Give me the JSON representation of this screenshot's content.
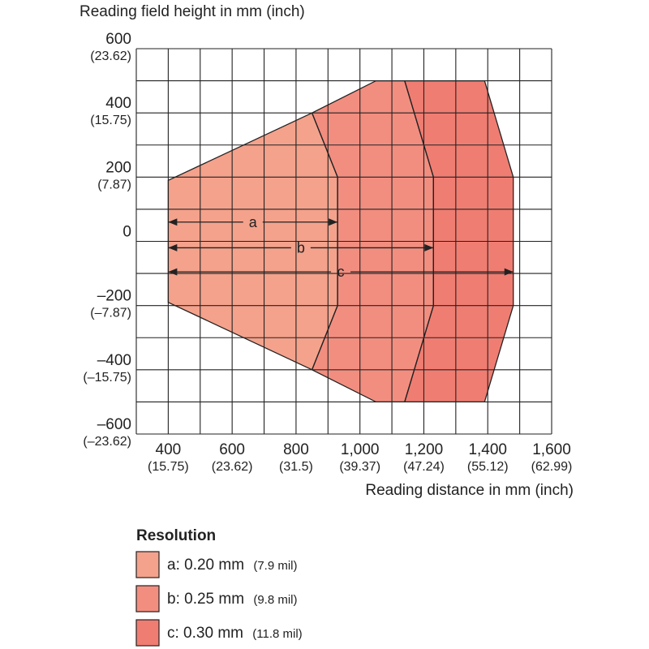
{
  "chart_data": {
    "type": "area",
    "ylabel": "Reading field height in mm (inch)",
    "xlabel": "Reading distance in mm (inch)",
    "xlim": [
      300,
      1600
    ],
    "ylim": [
      -600,
      600
    ],
    "grid": true,
    "x_ticks": [
      {
        "value": 400,
        "main": "400",
        "sub": "(15.75)"
      },
      {
        "value": 600,
        "main": "600",
        "sub": "(23.62)"
      },
      {
        "value": 800,
        "main": "800",
        "sub": "(31.5)"
      },
      {
        "value": 1000,
        "main": "1,000",
        "sub": "(39.37)"
      },
      {
        "value": 1200,
        "main": "1,200",
        "sub": "(47.24)"
      },
      {
        "value": 1400,
        "main": "1,400",
        "sub": "(55.12)"
      },
      {
        "value": 1600,
        "main": "1,600",
        "sub": "(62.99)"
      }
    ],
    "y_ticks": [
      {
        "value": 600,
        "main": "600",
        "sub": "(23.62)"
      },
      {
        "value": 400,
        "main": "400",
        "sub": "(15.75)"
      },
      {
        "value": 200,
        "main": "200",
        "sub": "(7.87)"
      },
      {
        "value": 0,
        "main": "0",
        "sub": ""
      },
      {
        "value": -200,
        "main": "–200",
        "sub": "(–7.87)"
      },
      {
        "value": -400,
        "main": "–400",
        "sub": "(–15.75)"
      },
      {
        "value": -600,
        "main": "–600",
        "sub": "(–23.62)"
      }
    ],
    "series": [
      {
        "name": "a",
        "color": "#f4a28c",
        "polygon": [
          [
            400,
            190
          ],
          [
            850,
            400
          ],
          [
            930,
            200
          ],
          [
            930,
            -200
          ],
          [
            850,
            -400
          ],
          [
            400,
            -190
          ]
        ],
        "range_line": {
          "y": 60,
          "x_start": 400,
          "x_end": 930
        }
      },
      {
        "name": "b",
        "color": "#f28e80",
        "polygon": [
          [
            850,
            400
          ],
          [
            1050,
            500
          ],
          [
            1140,
            500
          ],
          [
            1230,
            200
          ],
          [
            1230,
            -200
          ],
          [
            1140,
            -500
          ],
          [
            1050,
            -500
          ],
          [
            850,
            -400
          ],
          [
            930,
            -200
          ],
          [
            930,
            200
          ]
        ],
        "range_line": {
          "y": -20,
          "x_start": 400,
          "x_end": 1230
        }
      },
      {
        "name": "c",
        "color": "#f07d72",
        "polygon": [
          [
            1140,
            500
          ],
          [
            1390,
            500
          ],
          [
            1480,
            200
          ],
          [
            1480,
            -200
          ],
          [
            1390,
            -500
          ],
          [
            1140,
            -500
          ],
          [
            1230,
            -200
          ],
          [
            1230,
            200
          ]
        ],
        "range_line": {
          "y": -95,
          "x_start": 400,
          "x_end": 1480
        }
      }
    ]
  },
  "legend": {
    "title": "Resolution",
    "items": [
      {
        "label": "a: 0.20 mm",
        "sub": "(7.9 mil)",
        "color": "#f4a28c"
      },
      {
        "label": "b: 0.25 mm",
        "sub": "(9.8 mil)",
        "color": "#f28e80"
      },
      {
        "label": "c: 0.30 mm",
        "sub": "(11.8 mil)",
        "color": "#f07d72"
      }
    ]
  }
}
